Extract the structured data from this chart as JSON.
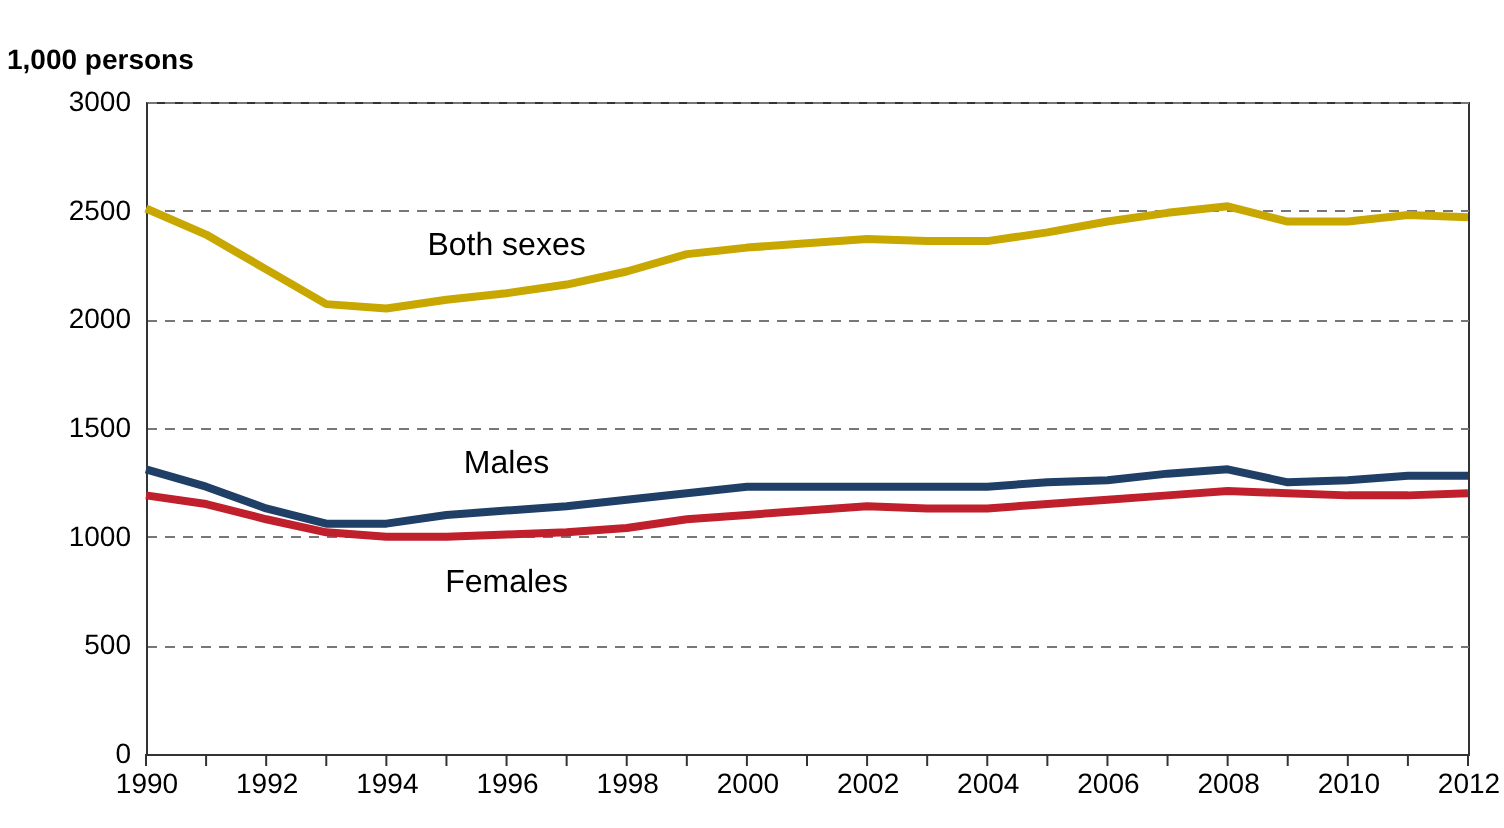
{
  "chart_data": {
    "type": "line",
    "ylabel": "1,000 persons",
    "x": [
      1990,
      1991,
      1992,
      1993,
      1994,
      1995,
      1996,
      1997,
      1998,
      1999,
      2000,
      2001,
      2002,
      2003,
      2004,
      2005,
      2006,
      2007,
      2008,
      2009,
      2010,
      2011,
      2012
    ],
    "series": [
      {
        "name": "Both sexes",
        "color": "#c8a800",
        "values": [
          2510,
          2390,
          2230,
          2070,
          2050,
          2090,
          2120,
          2160,
          2220,
          2300,
          2330,
          2350,
          2370,
          2360,
          2360,
          2400,
          2450,
          2490,
          2520,
          2450,
          2450,
          2480,
          2470
        ]
      },
      {
        "name": "Males",
        "color": "#1f3f66",
        "values": [
          1310,
          1230,
          1130,
          1060,
          1060,
          1100,
          1120,
          1140,
          1170,
          1200,
          1230,
          1230,
          1230,
          1230,
          1230,
          1250,
          1260,
          1290,
          1310,
          1250,
          1260,
          1280,
          1280
        ]
      },
      {
        "name": "Females",
        "color": "#c0202b",
        "values": [
          1190,
          1150,
          1080,
          1020,
          1000,
          1000,
          1010,
          1020,
          1040,
          1080,
          1100,
          1120,
          1140,
          1130,
          1130,
          1150,
          1170,
          1190,
          1210,
          1200,
          1190,
          1190,
          1200
        ]
      }
    ],
    "xlim": [
      1990,
      2012
    ],
    "xticks": [
      1990,
      {
        "value": 1991,
        "label": null
      },
      1992,
      {
        "value": 1993,
        "label": null
      },
      1994,
      {
        "value": 1995,
        "label": null
      },
      1996,
      {
        "value": 1997,
        "label": null
      },
      1998,
      {
        "value": 1999,
        "label": null
      },
      2000,
      {
        "value": 2001,
        "label": null
      },
      2002,
      {
        "value": 2003,
        "label": null
      },
      2004,
      {
        "value": 2005,
        "label": null
      },
      2006,
      {
        "value": 2007,
        "label": null
      },
      2008,
      {
        "value": 2009,
        "label": null
      },
      2010,
      {
        "value": 2011,
        "label": null
      },
      2012
    ],
    "ylim": [
      0,
      3000
    ],
    "yticks": [
      0,
      500,
      1000,
      1500,
      2000,
      2500,
      3000
    ],
    "grid": "y",
    "legend": false,
    "marker": "none",
    "line_style": "solid"
  }
}
